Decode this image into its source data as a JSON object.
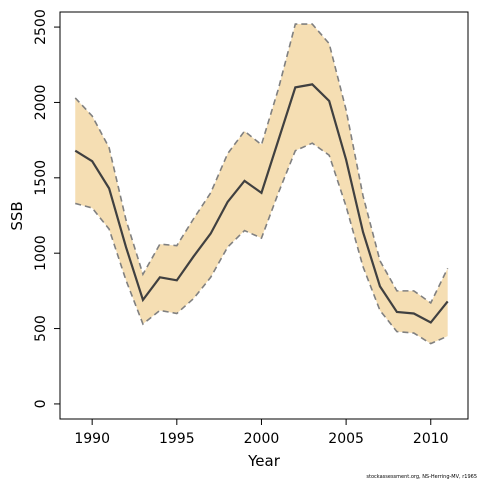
{
  "chart_data": {
    "type": "area",
    "xlabel": "Year",
    "ylabel": "SSB",
    "xlim": [
      1988.1,
      2012.2
    ],
    "ylim": [
      -100,
      2600
    ],
    "xticks": [
      1990,
      1995,
      2000,
      2005,
      2010
    ],
    "yticks": [
      0,
      500,
      1000,
      1500,
      2000,
      2500
    ],
    "grid": false,
    "colors": {
      "band": "#F5DEB3",
      "line": "#404040",
      "bounds": "#808080"
    },
    "x": [
      1989,
      1990,
      1991,
      1992,
      1993,
      1994,
      1995,
      1996,
      1997,
      1998,
      1999,
      2000,
      2001,
      2002,
      2003,
      2004,
      2005,
      2006,
      2007,
      2008,
      2009,
      2010,
      2011
    ],
    "series": [
      {
        "name": "SSB",
        "values": [
          1680,
          1610,
          1430,
          1040,
          690,
          840,
          820,
          980,
          1130,
          1340,
          1480,
          1400,
          1750,
          2100,
          2120,
          2010,
          1620,
          1140,
          780,
          610,
          600,
          540,
          680
        ]
      },
      {
        "name": "Upper",
        "values": [
          2030,
          1910,
          1700,
          1220,
          860,
          1060,
          1050,
          1230,
          1400,
          1660,
          1810,
          1720,
          2090,
          2520,
          2520,
          2390,
          1950,
          1380,
          950,
          750,
          750,
          670,
          900
        ]
      },
      {
        "name": "Lower",
        "values": [
          1330,
          1300,
          1160,
          820,
          530,
          620,
          600,
          700,
          840,
          1040,
          1150,
          1100,
          1400,
          1680,
          1730,
          1650,
          1310,
          910,
          620,
          480,
          470,
          400,
          450
        ]
      }
    ]
  },
  "caption": "stockassessment.org, NS-Herring-MV, r1965"
}
